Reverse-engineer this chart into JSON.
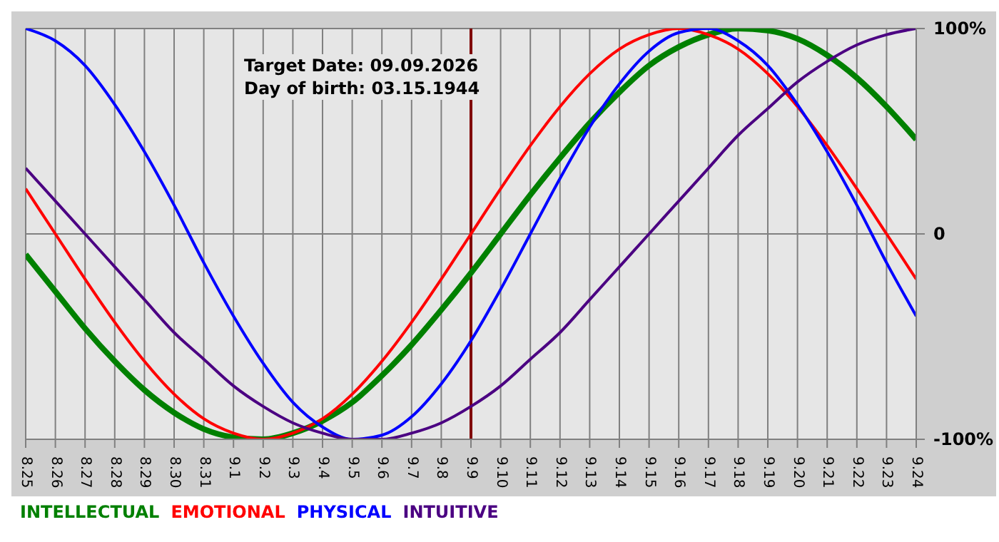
{
  "chart_data": {
    "type": "line",
    "categories": [
      "8.25",
      "8.26",
      "8.27",
      "8.28",
      "8.29",
      "8.30",
      "8.31",
      "9.1",
      "9.2",
      "9.3",
      "9.4",
      "9.5",
      "9.6",
      "9.7",
      "9.8",
      "9.9",
      "9.10",
      "9.11",
      "9.12",
      "9.13",
      "9.14",
      "9.15",
      "9.16",
      "9.17",
      "9.18",
      "9.19",
      "9.20",
      "9.21",
      "9.22",
      "9.23",
      "9.24"
    ],
    "series": [
      {
        "name": "INTELLECTUAL",
        "color": "#008000",
        "values": [
          -10,
          -28,
          -46,
          -62,
          -76,
          -87,
          -95,
          -99,
          -100,
          -97,
          -91,
          -82,
          -69,
          -54,
          -37,
          -19,
          0,
          19,
          37,
          54,
          69,
          82,
          91,
          97,
          100,
          99,
          95,
          87,
          76,
          62,
          46
        ]
      },
      {
        "name": "EMOTIONAL",
        "color": "#ff0000",
        "values": [
          22,
          0,
          -22,
          -43,
          -62,
          -78,
          -90,
          -97,
          -100,
          -97,
          -90,
          -78,
          -62,
          -43,
          -22,
          0,
          22,
          43,
          62,
          78,
          90,
          97,
          100,
          97,
          90,
          78,
          62,
          43,
          22,
          0,
          -22
        ]
      },
      {
        "name": "PHYSICAL",
        "color": "#0000ff",
        "values": [
          100,
          94,
          82,
          63,
          40,
          14,
          -14,
          -40,
          -63,
          -82,
          -94,
          -100,
          -98,
          -89,
          -73,
          -52,
          -27,
          0,
          27,
          52,
          73,
          89,
          98,
          100,
          94,
          82,
          63,
          40,
          14,
          -14,
          -40
        ]
      },
      {
        "name": "INTUITIVE",
        "color": "#4b0082",
        "values": [
          32,
          16,
          0,
          -16,
          -32,
          -48,
          -61,
          -74,
          -84,
          -92,
          -97,
          -100,
          -100,
          -97,
          -92,
          -84,
          -74,
          -61,
          -48,
          -32,
          -16,
          0,
          16,
          32,
          48,
          61,
          74,
          84,
          92,
          97,
          100
        ]
      }
    ],
    "ylim": [
      -100,
      100
    ],
    "yticks": [
      {
        "value": 100,
        "label": "100%"
      },
      {
        "value": 0,
        "label": "0"
      },
      {
        "value": -100,
        "label": "-100%"
      }
    ],
    "grid": true,
    "legend": "bottom",
    "line_style": "solid",
    "ref_lines": [
      {
        "axis": "x",
        "value": "9.9",
        "color": "#800000"
      }
    ],
    "annotations": [
      "Target Date: 09.09.2026",
      "Day of birth: 03.15.1944"
    ]
  }
}
